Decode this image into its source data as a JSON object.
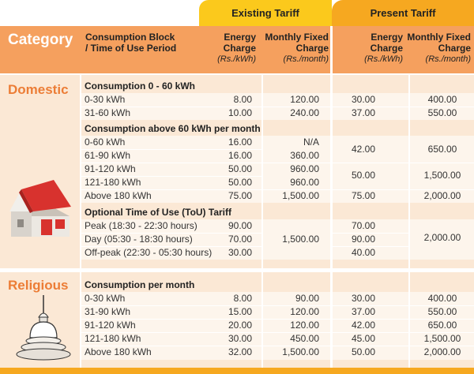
{
  "tabs": {
    "existing": "Existing Tariff",
    "present": "Present Tariff"
  },
  "header": {
    "category": "Category",
    "block_line1": "Consumption Block",
    "block_line2": "/ Time of Use Period",
    "energy_line1": "Energy",
    "energy_line2": "Charge",
    "energy_unit": "(Rs./kWh)",
    "fixed_line1": "Monthly Fixed",
    "fixed_line2": "Charge",
    "fixed_unit": "(Rs./month)"
  },
  "domestic": {
    "title": "Domestic",
    "group1": {
      "title": "Consumption 0 - 60 kWh",
      "rows": [
        {
          "block": "0-30 kWh",
          "ex_energy": "8.00",
          "ex_fixed": "120.00",
          "pr_energy": "30.00",
          "pr_fixed": "400.00"
        },
        {
          "block": "31-60 kWh",
          "ex_energy": "10.00",
          "ex_fixed": "240.00",
          "pr_energy": "37.00",
          "pr_fixed": "550.00"
        }
      ]
    },
    "group2": {
      "title": "Consumption above 60 kWh per month",
      "rows": [
        {
          "block": "0-60 kWh",
          "ex_energy": "16.00",
          "ex_fixed": "N/A"
        },
        {
          "block": "61-90 kWh",
          "ex_energy": "16.00",
          "ex_fixed": "360.00"
        },
        {
          "block": "91-120 kWh",
          "ex_energy": "50.00",
          "ex_fixed": "960.00"
        },
        {
          "block": "121-180 kWh",
          "ex_energy": "50.00",
          "ex_fixed": "960.00"
        },
        {
          "block": "Above 180 kWh",
          "ex_energy": "75.00",
          "ex_fixed": "1,500.00"
        }
      ],
      "present": [
        {
          "energy": "42.00",
          "fixed": "650.00"
        },
        {
          "energy": "50.00",
          "fixed": "1,500.00"
        },
        {
          "energy": "75.00",
          "fixed": "2,000.00"
        }
      ]
    },
    "group3": {
      "title": "Optional Time of Use (ToU) Tariff",
      "rows": [
        {
          "block": "Peak (18:30 - 22:30 hours)",
          "ex_energy": "90.00",
          "pr_energy": "70.00"
        },
        {
          "block": "Day (05:30 - 18:30 hours)",
          "ex_energy": "70.00",
          "pr_energy": "90.00"
        },
        {
          "block": "Off-peak (22:30 - 05:30 hours)",
          "ex_energy": "30.00",
          "pr_energy": "40.00"
        }
      ],
      "ex_fixed": "1,500.00",
      "pr_fixed": "2,000.00"
    }
  },
  "religious": {
    "title": "Religious",
    "group": {
      "title": "Consumption per month",
      "rows": [
        {
          "block": "0-30 kWh",
          "ex_energy": "8.00",
          "ex_fixed": "90.00",
          "pr_energy": "30.00",
          "pr_fixed": "400.00"
        },
        {
          "block": "31-90 kWh",
          "ex_energy": "15.00",
          "ex_fixed": "120.00",
          "pr_energy": "37.00",
          "pr_fixed": "550.00"
        },
        {
          "block": "91-120 kWh",
          "ex_energy": "20.00",
          "ex_fixed": "120.00",
          "pr_energy": "42.00",
          "pr_fixed": "650.00"
        },
        {
          "block": "121-180 kWh",
          "ex_energy": "30.00",
          "ex_fixed": "450.00",
          "pr_energy": "45.00",
          "pr_fixed": "1,500.00"
        },
        {
          "block": "Above 180 kWh",
          "ex_energy": "32.00",
          "ex_fixed": "1,500.00",
          "pr_energy": "50.00",
          "pr_fixed": "2,000.00"
        }
      ]
    }
  },
  "icons": {
    "domestic": "house-icon",
    "religious": "stupa-icon"
  },
  "colors": {
    "existing_tab": "#fbc91c",
    "present_tab": "#f6a820",
    "header_band": "#f5a05e",
    "section_title": "#ec7d36",
    "panel": "#fbe8d5"
  }
}
